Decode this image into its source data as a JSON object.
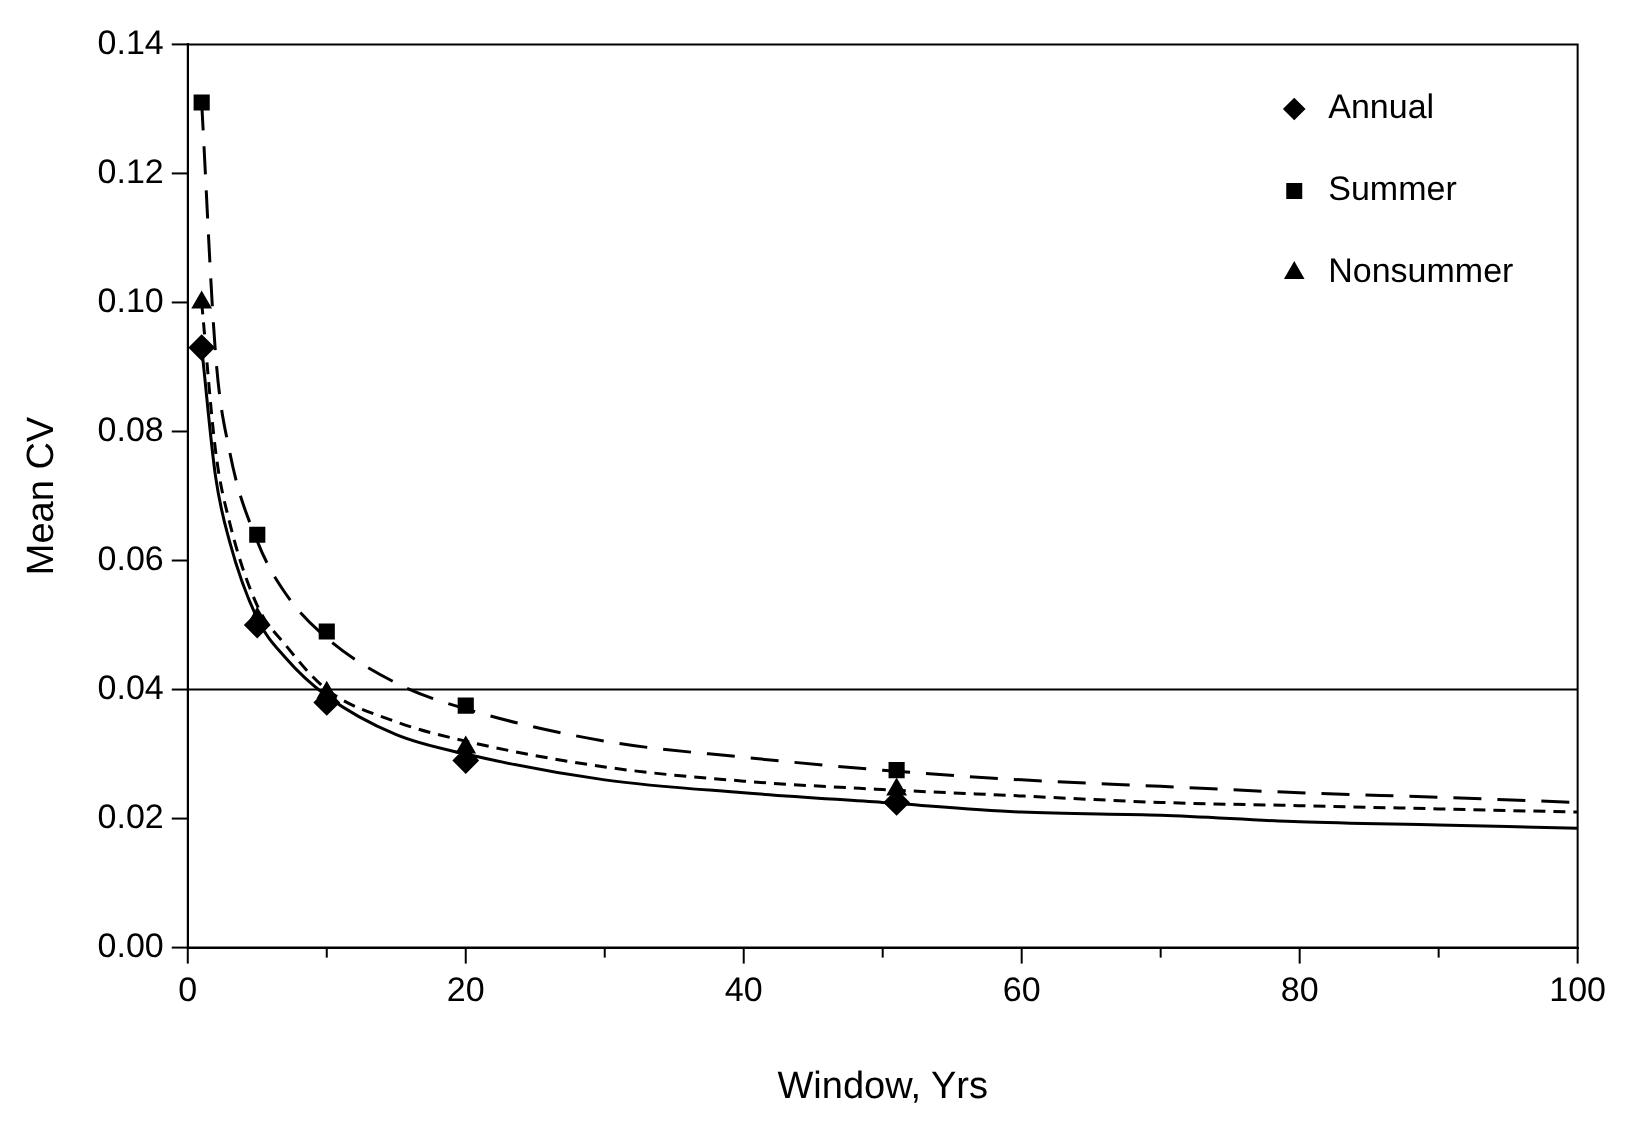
{
  "chart_data": {
    "type": "line",
    "xlabel": "Window, Yrs",
    "ylabel": "Mean CV",
    "xlim": [
      0,
      100
    ],
    "xticks": [
      0,
      {
        "value": 10,
        "label": null
      },
      20,
      {
        "value": 30,
        "label": null
      },
      40,
      {
        "value": 50,
        "label": null
      },
      60,
      {
        "value": 70,
        "label": null
      },
      80,
      {
        "value": 90,
        "label": null
      },
      100
    ],
    "ylim": [
      0,
      0.14
    ],
    "yticks": [
      {
        "value": 0,
        "label": "0.00"
      },
      {
        "value": 0.02,
        "label": "0.02"
      },
      {
        "value": 0.04,
        "label": "0.04"
      },
      {
        "value": 0.06,
        "label": "0.06"
      },
      {
        "value": 0.08,
        "label": "0.08"
      },
      {
        "value": 0.1,
        "label": "0.10"
      },
      {
        "value": 0.12,
        "label": "0.12"
      },
      {
        "value": 0.14,
        "label": "0.14"
      }
    ],
    "grid": false,
    "legend": "top right",
    "ref_lines": [
      {
        "axis": "y",
        "value": 0.04,
        "color": "#000000",
        "line_style": "solid"
      }
    ],
    "series": [
      {
        "name": "Annual",
        "type": "scatter",
        "color": "#000000",
        "marker": "diamond",
        "x": [
          1,
          5,
          10,
          20,
          51
        ],
        "values": [
          0.093,
          0.05,
          0.038,
          0.029,
          0.0225
        ]
      },
      {
        "name": "Summer",
        "type": "scatter",
        "color": "#000000",
        "marker": "square",
        "x": [
          1,
          5,
          10,
          20,
          51
        ],
        "values": [
          0.131,
          0.064,
          0.049,
          0.0375,
          0.0275
        ]
      },
      {
        "name": "Nonsummer",
        "type": "scatter",
        "color": "#000000",
        "marker": "triangle",
        "x": [
          1,
          5,
          10,
          20,
          51
        ],
        "values": [
          0.1,
          0.051,
          0.0395,
          0.031,
          0.0245
        ]
      },
      {
        "type": "line",
        "color": "#000000",
        "marker": "none",
        "line_style": "solid",
        "x": [
          1,
          2,
          3,
          5,
          7,
          10,
          15,
          20,
          30,
          40,
          50,
          60,
          70,
          80,
          90,
          100
        ],
        "values": [
          0.093,
          0.073,
          0.063,
          0.051,
          0.045,
          0.039,
          0.033,
          0.03,
          0.026,
          0.024,
          0.0225,
          0.021,
          0.0205,
          0.0195,
          0.019,
          0.0185
        ]
      },
      {
        "type": "line",
        "color": "#000000",
        "marker": "none",
        "line_style": "dashed",
        "x": [
          1,
          2,
          3,
          5,
          7,
          10,
          15,
          20,
          30,
          40,
          50,
          60,
          70,
          80,
          90,
          100
        ],
        "values": [
          0.131,
          0.092,
          0.077,
          0.063,
          0.055,
          0.048,
          0.041,
          0.037,
          0.032,
          0.0295,
          0.0275,
          0.026,
          0.025,
          0.024,
          0.0233,
          0.0225
        ]
      },
      {
        "type": "line",
        "color": "#000000",
        "marker": "none",
        "line_style": "dotted",
        "x": [
          1,
          2,
          3,
          5,
          7,
          10,
          15,
          20,
          30,
          40,
          50,
          60,
          70,
          80,
          90,
          100
        ],
        "values": [
          0.1,
          0.077,
          0.066,
          0.053,
          0.047,
          0.04,
          0.035,
          0.032,
          0.028,
          0.0258,
          0.0245,
          0.0235,
          0.0225,
          0.022,
          0.0215,
          0.021
        ]
      }
    ]
  }
}
